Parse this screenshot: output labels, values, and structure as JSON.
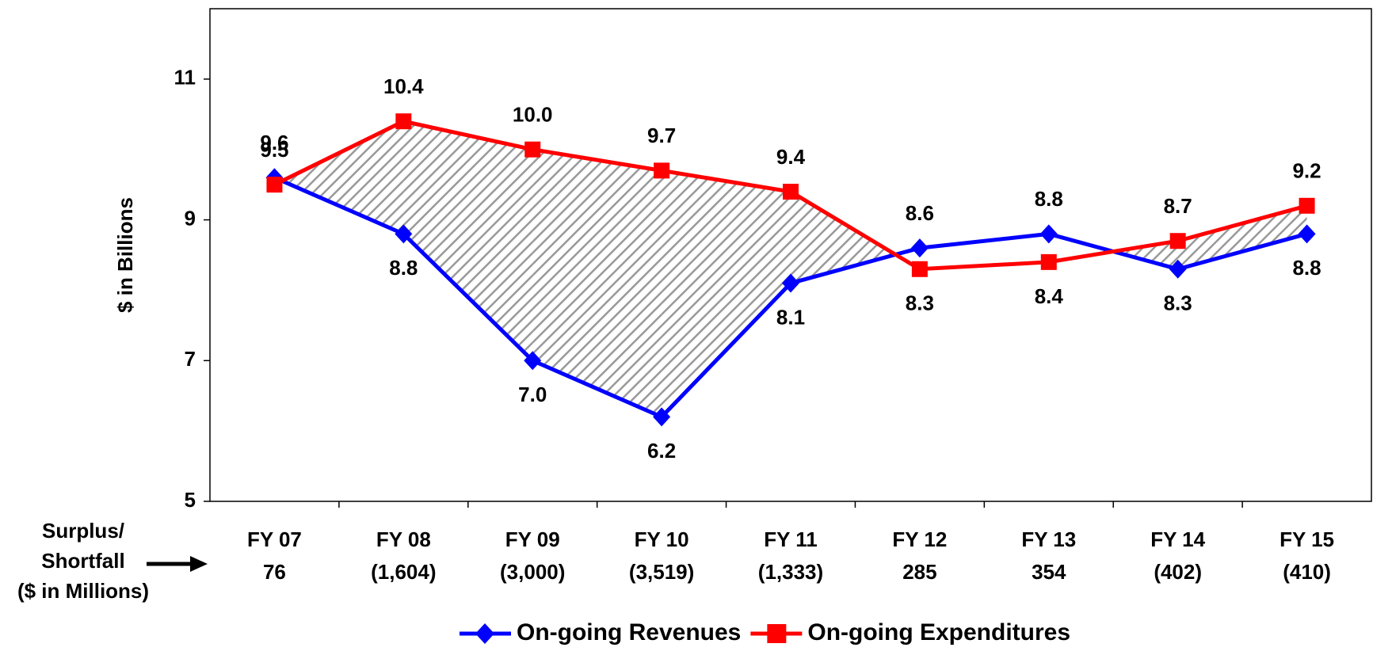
{
  "chart_data": {
    "type": "line",
    "y_label": "$ in Billions",
    "categories": [
      "FY 07",
      "FY 08",
      "FY 09",
      "FY 10",
      "FY 11",
      "FY 12",
      "FY 13",
      "FY 14",
      "FY 15"
    ],
    "row_label": [
      "Surplus/",
      "Shortfall",
      "($ in Millions)"
    ],
    "surplus_shortfall": [
      "76",
      "(1,604)",
      "(3,000)",
      "(3,519)",
      "(1,333)",
      "285",
      "354",
      "(402)",
      "(410)"
    ],
    "series": [
      {
        "name": "On-going Revenues",
        "color": "#0000ff",
        "marker": "diamond",
        "values": [
          9.6,
          8.8,
          7.0,
          6.2,
          8.1,
          8.6,
          8.8,
          8.3,
          8.8
        ],
        "value_labels": [
          "9.6",
          "8.8",
          "7.0",
          "6.2",
          "8.1",
          "8.6",
          "8.8",
          "8.3",
          "8.8"
        ]
      },
      {
        "name": "On-going Expenditures",
        "color": "#ff0000",
        "marker": "square",
        "values": [
          9.5,
          10.4,
          10.0,
          9.7,
          9.4,
          8.3,
          8.4,
          8.7,
          9.2
        ],
        "value_labels": [
          "9.5",
          "10.4",
          "10.0",
          "9.7",
          "9.4",
          "8.3",
          "8.4",
          "8.7",
          "9.2"
        ]
      }
    ],
    "ylim": [
      5,
      12
    ],
    "yticks": [
      5,
      7,
      9,
      11
    ],
    "legend": "bottom"
  }
}
